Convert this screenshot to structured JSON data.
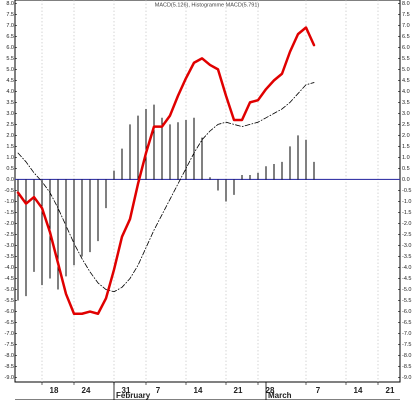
{
  "chart_data": {
    "type": "line",
    "title": "MACD(5.126), Histogramme MACD(5.791)",
    "categories": [
      null,
      null,
      null,
      "18",
      null,
      null,
      null,
      "24",
      null,
      null,
      null,
      null,
      "31",
      null,
      null,
      null,
      "7",
      null,
      null,
      null,
      null,
      "14",
      null,
      null,
      null,
      null,
      "21",
      null,
      null,
      null,
      "28",
      null,
      null,
      null,
      null,
      null,
      "7",
      null,
      null,
      null,
      null,
      "14",
      null,
      null,
      null,
      "21",
      null,
      null
    ],
    "months": [
      "February",
      "March"
    ],
    "series": [
      {
        "type": "bar",
        "color": "#000000",
        "values": [
          -5.5,
          -5.3,
          -4.2,
          -4.8,
          -4.5,
          -5.0,
          -4.4,
          -3.9,
          -3.5,
          -3.3,
          -2.8,
          -1.3,
          0.4,
          1.4,
          2.5,
          2.9,
          3.2,
          3.4,
          2.8,
          2.5,
          2.6,
          2.7,
          2.8,
          1.9,
          0.1,
          -0.5,
          -1.0,
          -0.7,
          0.2,
          0.2,
          0.3,
          0.6,
          0.7,
          0.8,
          1.5,
          2.0,
          1.8,
          0.8,
          null,
          null,
          null,
          null,
          null,
          null,
          null,
          null,
          null,
          null
        ]
      },
      {
        "type": "line",
        "color": "#000000",
        "dashed": true,
        "values": [
          1.2,
          0.8,
          0.3,
          -0.1,
          -0.6,
          -1.3,
          -2.1,
          -2.9,
          -3.6,
          -4.2,
          -4.7,
          -5.0,
          -5.1,
          -4.9,
          -4.5,
          -3.9,
          -3.1,
          -2.3,
          -1.6,
          -0.9,
          -0.2,
          0.5,
          1.2,
          1.8,
          2.2,
          2.5,
          2.6,
          2.5,
          2.4,
          2.5,
          2.6,
          2.8,
          3.0,
          3.2,
          3.5,
          3.9,
          4.3,
          4.4,
          null,
          null,
          null,
          null,
          null,
          null,
          null,
          null,
          null,
          null
        ]
      },
      {
        "type": "line",
        "color": "#e00000",
        "values": [
          -0.6,
          -1.1,
          -0.8,
          -1.3,
          -2.4,
          -3.8,
          -5.2,
          -6.1,
          -6.1,
          -6.0,
          -6.1,
          -5.4,
          -4.1,
          -2.6,
          -1.8,
          -0.2,
          1.2,
          2.4,
          2.4,
          2.9,
          3.8,
          4.6,
          5.3,
          5.5,
          5.2,
          5.0,
          3.8,
          2.7,
          2.7,
          3.5,
          3.6,
          4.1,
          4.5,
          4.8,
          5.8,
          6.6,
          6.9,
          6.1,
          null,
          null,
          null,
          null,
          null,
          null,
          null,
          null,
          null,
          null
        ]
      }
    ],
    "ylim": [
      -9.2,
      8.15
    ],
    "yticks": [
      {
        "value": 8,
        "label": "8.0"
      },
      7.5,
      {
        "value": 7,
        "label": "7.0"
      },
      6.5,
      {
        "value": 6,
        "label": "6.0"
      },
      5.5,
      {
        "value": 5,
        "label": "5.0"
      },
      4.5,
      {
        "value": 4,
        "label": "4.0"
      },
      3.5,
      {
        "value": 3,
        "label": "3.0"
      },
      2.5,
      {
        "value": 2,
        "label": "2.0"
      },
      1.5,
      {
        "value": 1,
        "label": "1.0"
      },
      0.5,
      {
        "value": 0,
        "label": "0.0"
      },
      -0.5,
      {
        "value": -1,
        "label": "-1.0"
      },
      -1.5,
      {
        "value": -2,
        "label": "-2.0"
      },
      -2.5,
      {
        "value": -3,
        "label": "-3.0"
      },
      -3.5,
      {
        "value": -4,
        "label": "-4.0"
      },
      -4.5,
      {
        "value": -5,
        "label": "-5.0"
      },
      -5.5,
      {
        "value": -6,
        "label": "-6.0"
      },
      -6.5,
      {
        "value": -7,
        "label": "-7.0"
      },
      -7.5,
      {
        "value": -8,
        "label": "-8.0"
      },
      -8.5,
      {
        "value": -9,
        "label": "-9.0"
      }
    ],
    "zero_line_color": "#3a3aa8",
    "grid": true
  }
}
